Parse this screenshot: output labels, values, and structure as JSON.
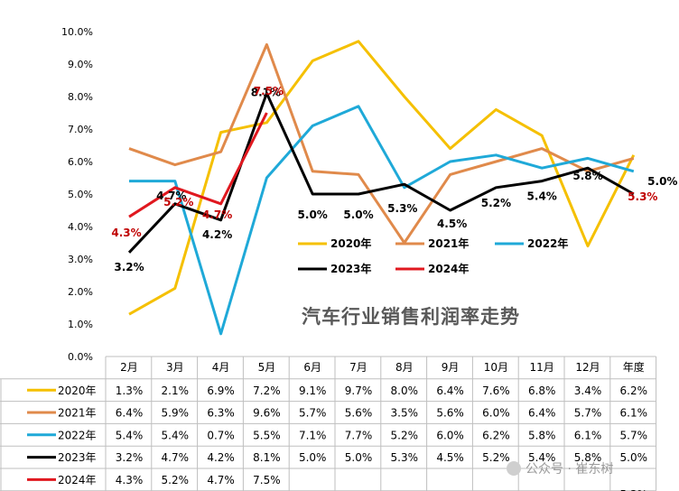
{
  "chart_data": {
    "type": "line",
    "title": "汽车行业销售利润率走势",
    "categories": [
      "2月",
      "3月",
      "4月",
      "5月",
      "6月",
      "7月",
      "8月",
      "9月",
      "10月",
      "11月",
      "12月",
      "年度"
    ],
    "ylim": [
      0,
      10
    ],
    "yticks": [
      "0.0%",
      "1.0%",
      "2.0%",
      "3.0%",
      "4.0%",
      "5.0%",
      "6.0%",
      "7.0%",
      "8.0%",
      "9.0%",
      "10.0%"
    ],
    "grid": false,
    "legend_position": "inside-bottom",
    "series": [
      {
        "name": "2020年",
        "color": "#F5C000",
        "values": [
          1.3,
          2.1,
          6.9,
          7.2,
          9.1,
          9.7,
          8.0,
          6.4,
          7.6,
          6.8,
          3.4,
          6.2
        ],
        "labels": [
          "1.3%",
          "2.1%",
          "6.9%",
          "7.2%",
          "9.1%",
          "9.7%",
          "8.0%",
          "6.4%",
          "7.6%",
          "6.8%",
          "3.4%",
          "6.2%"
        ]
      },
      {
        "name": "2021年",
        "color": "#E08A4B",
        "values": [
          6.4,
          5.9,
          6.3,
          9.6,
          5.7,
          5.6,
          3.5,
          5.6,
          6.0,
          6.4,
          5.7,
          6.1
        ],
        "labels": [
          "6.4%",
          "5.9%",
          "6.3%",
          "9.6%",
          "5.7%",
          "5.6%",
          "3.5%",
          "5.6%",
          "6.0%",
          "6.4%",
          "5.7%",
          "6.1%"
        ]
      },
      {
        "name": "2022年",
        "color": "#1FA9D8",
        "values": [
          5.4,
          5.4,
          0.7,
          5.5,
          7.1,
          7.7,
          5.2,
          6.0,
          6.2,
          5.8,
          6.1,
          5.7
        ],
        "labels": [
          "5.4%",
          "5.4%",
          "0.7%",
          "5.5%",
          "7.1%",
          "7.7%",
          "5.2%",
          "6.0%",
          "6.2%",
          "5.8%",
          "6.1%",
          "5.7%"
        ]
      },
      {
        "name": "2023年",
        "color": "#000000",
        "values": [
          3.2,
          4.7,
          4.2,
          8.1,
          5.0,
          5.0,
          5.3,
          4.5,
          5.2,
          5.4,
          5.8,
          5.0
        ],
        "labels": [
          "3.2%",
          "4.7%",
          "4.2%",
          "8.1%",
          "5.0%",
          "5.0%",
          "5.3%",
          "4.5%",
          "5.2%",
          "5.4%",
          "5.8%",
          "5.0%"
        ]
      },
      {
        "name": "2024年",
        "color": "#E0181F",
        "values": [
          4.3,
          5.2,
          4.7,
          7.5,
          null,
          null,
          null,
          null,
          null,
          null,
          null,
          5.3
        ],
        "labels": [
          "4.3%",
          "5.2%",
          "4.7%",
          "7.5%",
          "",
          "",
          "",
          "",
          "",
          "",
          "",
          "5.3%"
        ]
      }
    ],
    "annotations": [
      {
        "text": "3.2%",
        "color": "#000000",
        "cat": 0,
        "value": 3.2,
        "dx": 0,
        "dy": 20
      },
      {
        "text": "4.3%",
        "color": "#C00000",
        "cat": 0,
        "value": 4.3,
        "dx": -3,
        "dy": 22
      },
      {
        "text": "4.7%",
        "color": "#000000",
        "cat": 1,
        "value": 4.7,
        "dx": -4,
        "dy": -5
      },
      {
        "text": "5.2%",
        "color": "#C00000",
        "cat": 1,
        "value": 5.2,
        "dx": 4,
        "dy": 20
      },
      {
        "text": "4.2%",
        "color": "#000000",
        "cat": 2,
        "value": 4.2,
        "dx": -4,
        "dy": 20
      },
      {
        "text": "4.7%",
        "color": "#C00000",
        "cat": 2,
        "value": 4.7,
        "dx": -4,
        "dy": 16
      },
      {
        "text": "8.1%",
        "color": "#000000",
        "cat": 3,
        "value": 8.1,
        "dx": -1,
        "dy": 3
      },
      {
        "text": "7.5%",
        "color": "#C00000",
        "cat": 3,
        "value": 7.5,
        "dx": 2,
        "dy": -20
      },
      {
        "text": "5.0%",
        "color": "#000000",
        "cat": 4,
        "value": 5.0,
        "dx": 0,
        "dy": 27
      },
      {
        "text": "5.0%",
        "color": "#000000",
        "cat": 5,
        "value": 5.0,
        "dx": 0,
        "dy": 27
      },
      {
        "text": "5.3%",
        "color": "#000000",
        "cat": 6,
        "value": 5.3,
        "dx": -2,
        "dy": 31
      },
      {
        "text": "4.5%",
        "color": "#000000",
        "cat": 7,
        "value": 4.5,
        "dx": 2,
        "dy": 19
      },
      {
        "text": "5.2%",
        "color": "#000000",
        "cat": 8,
        "value": 5.2,
        "dx": 0,
        "dy": 21
      },
      {
        "text": "5.4%",
        "color": "#000000",
        "cat": 9,
        "value": 5.4,
        "dx": 0,
        "dy": 21
      },
      {
        "text": "5.8%",
        "color": "#000000",
        "cat": 10,
        "value": 5.8,
        "dx": 0,
        "dy": 13
      },
      {
        "text": "5.0%",
        "color": "#000000",
        "cat": 11,
        "value": 5.0,
        "dx": 32,
        "dy": -10
      },
      {
        "text": "5.3%",
        "color": "#C00000",
        "cat": 11,
        "value": 5.3,
        "dx": 10,
        "dy": 18
      }
    ]
  },
  "watermark": "公众号 · 崔东树"
}
